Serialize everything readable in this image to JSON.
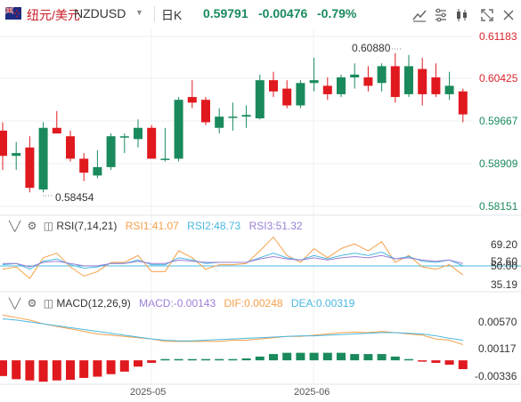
{
  "header": {
    "pair_cn": "纽元/美元",
    "symbol": "NZDUSD",
    "period": "日K",
    "price": "0.59791",
    "change": "-0.00476",
    "change_pct": "-0.79%"
  },
  "toolbar": {
    "icons": [
      "indicator-icon",
      "settings-icon",
      "candle-type-icon",
      "fullscreen-icon",
      "close-icon"
    ]
  },
  "main_axis": [
    "0.61183",
    "0.60425",
    "0.59667",
    "0.58909",
    "0.58151"
  ],
  "annotations": {
    "high_label": "0.60880",
    "low_label": "0.58454"
  },
  "rsi": {
    "label": "RSI(7,14,21)",
    "rsi1": "RSI1:41.07",
    "rsi2": "RSI2:48.73",
    "rsi3": "RSI3:51.32",
    "axis": [
      "69.20",
      "52.60",
      "50.00",
      "35.19"
    ]
  },
  "macd": {
    "label": "MACD(12,26,9)",
    "macd": "MACD:-0.00143",
    "dif": "DIF:0.00248",
    "dea": "DEA:0.00319",
    "axis": [
      "0.00570",
      "0.00117",
      "-0.00336"
    ]
  },
  "x_axis": [
    "2025-05",
    "2025-06"
  ],
  "colors": {
    "up": "#1a8a5c",
    "down": "#e0191f",
    "rsi1": "#f5a04a",
    "rsi2": "#49b8e0",
    "rsi3": "#9b7fd6",
    "dif": "#f5a04a",
    "dea": "#49b8e0"
  },
  "chart_data": {
    "type": "candlestick",
    "ylim": [
      0.5815,
      0.6118
    ],
    "candles": [
      {
        "o": 0.595,
        "h": 0.5965,
        "l": 0.588,
        "c": 0.5905
      },
      {
        "o": 0.5905,
        "h": 0.593,
        "l": 0.588,
        "c": 0.591
      },
      {
        "o": 0.592,
        "h": 0.594,
        "l": 0.584,
        "c": 0.5848
      },
      {
        "o": 0.5845,
        "h": 0.5965,
        "l": 0.584,
        "c": 0.5955
      },
      {
        "o": 0.5955,
        "h": 0.5985,
        "l": 0.5945,
        "c": 0.5945
      },
      {
        "o": 0.594,
        "h": 0.595,
        "l": 0.5895,
        "c": 0.59
      },
      {
        "o": 0.59,
        "h": 0.591,
        "l": 0.586,
        "c": 0.5875
      },
      {
        "o": 0.587,
        "h": 0.5915,
        "l": 0.5865,
        "c": 0.5885
      },
      {
        "o": 0.5885,
        "h": 0.5945,
        "l": 0.588,
        "c": 0.594
      },
      {
        "o": 0.594,
        "h": 0.5945,
        "l": 0.591,
        "c": 0.594
      },
      {
        "o": 0.5935,
        "h": 0.597,
        "l": 0.592,
        "c": 0.5955
      },
      {
        "o": 0.5955,
        "h": 0.596,
        "l": 0.59,
        "c": 0.59
      },
      {
        "o": 0.59,
        "h": 0.5955,
        "l": 0.5895,
        "c": 0.59
      },
      {
        "o": 0.59,
        "h": 0.601,
        "l": 0.5895,
        "c": 0.6005
      },
      {
        "o": 0.601,
        "h": 0.604,
        "l": 0.599,
        "c": 0.6
      },
      {
        "o": 0.6005,
        "h": 0.601,
        "l": 0.596,
        "c": 0.5965
      },
      {
        "o": 0.5955,
        "h": 0.599,
        "l": 0.5945,
        "c": 0.5975
      },
      {
        "o": 0.5975,
        "h": 0.6,
        "l": 0.595,
        "c": 0.5975
      },
      {
        "o": 0.5975,
        "h": 0.5995,
        "l": 0.5955,
        "c": 0.5978
      },
      {
        "o": 0.5972,
        "h": 0.605,
        "l": 0.597,
        "c": 0.604
      },
      {
        "o": 0.604,
        "h": 0.6055,
        "l": 0.601,
        "c": 0.602
      },
      {
        "o": 0.6025,
        "h": 0.604,
        "l": 0.599,
        "c": 0.5995
      },
      {
        "o": 0.5995,
        "h": 0.604,
        "l": 0.599,
        "c": 0.6035
      },
      {
        "o": 0.6035,
        "h": 0.608,
        "l": 0.602,
        "c": 0.604
      },
      {
        "o": 0.603,
        "h": 0.6045,
        "l": 0.6005,
        "c": 0.6015
      },
      {
        "o": 0.6015,
        "h": 0.605,
        "l": 0.601,
        "c": 0.6045
      },
      {
        "o": 0.6045,
        "h": 0.607,
        "l": 0.6025,
        "c": 0.605
      },
      {
        "o": 0.6045,
        "h": 0.6065,
        "l": 0.602,
        "c": 0.603
      },
      {
        "o": 0.6035,
        "h": 0.607,
        "l": 0.602,
        "c": 0.6065
      },
      {
        "o": 0.6065,
        "h": 0.6088,
        "l": 0.6,
        "c": 0.601
      },
      {
        "o": 0.6015,
        "h": 0.6085,
        "l": 0.601,
        "c": 0.6065
      },
      {
        "o": 0.606,
        "h": 0.608,
        "l": 0.5995,
        "c": 0.6015
      },
      {
        "o": 0.6045,
        "h": 0.607,
        "l": 0.601,
        "c": 0.6015
      },
      {
        "o": 0.6015,
        "h": 0.6055,
        "l": 0.6005,
        "c": 0.603
      },
      {
        "o": 0.602,
        "h": 0.6025,
        "l": 0.5965,
        "c": 0.5979
      }
    ],
    "rsi_range": [
      28,
      76
    ],
    "rsi1": [
      46,
      48,
      38,
      56,
      60,
      48,
      40,
      44,
      52,
      52,
      58,
      44,
      44,
      62,
      56,
      46,
      50,
      50,
      51,
      62,
      74,
      58,
      52,
      64,
      56,
      64,
      68,
      62,
      70,
      52,
      58,
      48,
      46,
      50,
      41
    ],
    "rsi2": [
      50,
      51,
      46,
      53,
      55,
      50,
      47,
      48,
      51,
      51,
      54,
      50,
      50,
      56,
      54,
      51,
      52,
      52,
      52,
      56,
      60,
      56,
      54,
      58,
      55,
      58,
      60,
      58,
      61,
      55,
      57,
      53,
      52,
      54,
      49
    ],
    "rsi3": [
      51,
      51,
      48,
      52,
      53,
      51,
      49,
      49,
      51,
      51,
      53,
      51,
      51,
      54,
      53,
      52,
      52,
      52,
      52,
      55,
      57,
      55,
      54,
      56,
      54,
      56,
      57,
      56,
      58,
      55,
      56,
      54,
      53,
      54,
      51
    ],
    "macd_range": [
      -0.0038,
      0.0078
    ],
    "dif": [
      0.0072,
      0.0068,
      0.0064,
      0.0058,
      0.0054,
      0.005,
      0.0046,
      0.0042,
      0.004,
      0.0038,
      0.0036,
      0.0034,
      0.003,
      0.003,
      0.003,
      0.003,
      0.003,
      0.0032,
      0.0032,
      0.0034,
      0.0036,
      0.0038,
      0.0038,
      0.004,
      0.0042,
      0.0044,
      0.0045,
      0.0044,
      0.0046,
      0.0044,
      0.0042,
      0.004,
      0.0034,
      0.0032,
      0.0025
    ],
    "dea": [
      0.0066,
      0.0064,
      0.0061,
      0.0058,
      0.0055,
      0.0052,
      0.0049,
      0.0046,
      0.0043,
      0.004,
      0.0037,
      0.0034,
      0.0032,
      0.0031,
      0.0031,
      0.0032,
      0.0033,
      0.0034,
      0.0035,
      0.0036,
      0.0037,
      0.0038,
      0.0039,
      0.0039,
      0.004,
      0.0041,
      0.0042,
      0.0043,
      0.0044,
      0.0044,
      0.0043,
      0.0042,
      0.0039,
      0.0035,
      0.0032
    ],
    "macd_hist": [
      -0.0025,
      -0.003,
      -0.0032,
      -0.0034,
      -0.0032,
      -0.0031,
      -0.0028,
      -0.0026,
      -0.0022,
      -0.0018,
      -0.001,
      -0.0004,
      0.0002,
      0.0002,
      0.0002,
      0.0002,
      0.0002,
      0.0002,
      0.0003,
      0.0006,
      0.001,
      0.0012,
      0.0012,
      0.0012,
      0.0012,
      0.0012,
      0.001,
      0.001,
      0.001,
      0.0006,
      0.0002,
      -0.0002,
      -0.0004,
      -0.0007,
      -0.0014
    ]
  }
}
